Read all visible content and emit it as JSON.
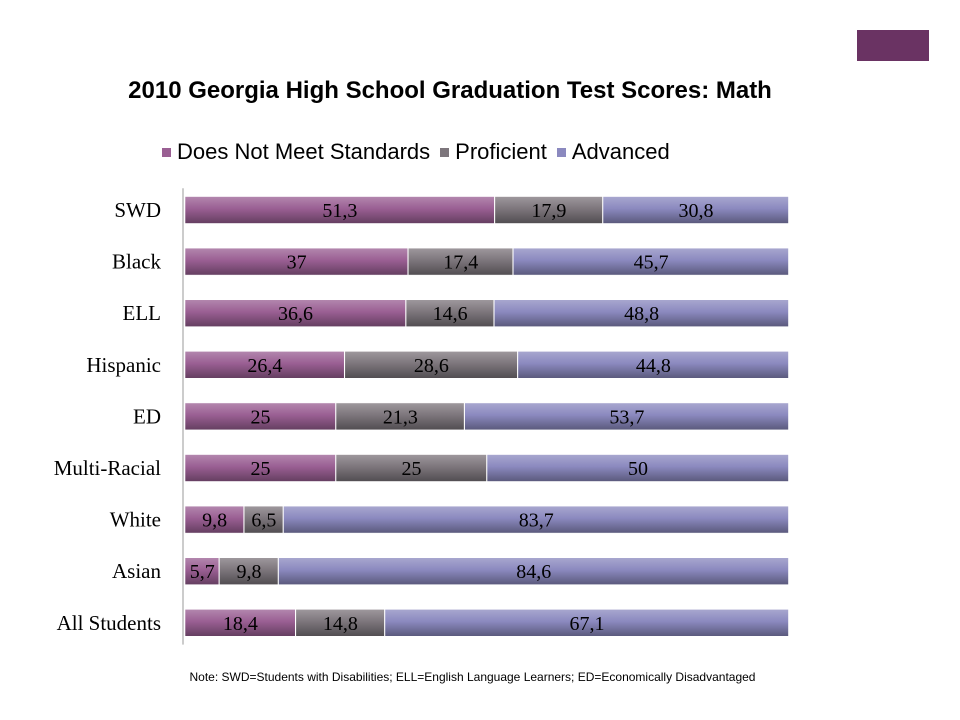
{
  "slide": {
    "accent_color": "#6a3363",
    "note": "Note: SWD=Students with Disabilities; ELL=English Language Learners; ED=Economically Disadvantaged"
  },
  "chart_data": {
    "type": "bar",
    "orientation": "horizontal",
    "stacked": "100%",
    "title": "2010 Georgia High School Graduation Test Scores: Math",
    "legend_position": "top",
    "grid": false,
    "categories": [
      "SWD",
      "Black",
      "ELL",
      "Hispanic",
      "ED",
      "Multi-Racial",
      "White",
      "Asian",
      "All Students"
    ],
    "series": [
      {
        "name": "Does Not Meet Standards",
        "color": "#9a5f93",
        "values": [
          51.3,
          37,
          36.6,
          26.4,
          25,
          25,
          9.8,
          5.7,
          18.4
        ],
        "labels": [
          "51,3",
          "37",
          "36,6",
          "26,4",
          "25",
          "25",
          "9,8",
          "5,7",
          "18,4"
        ]
      },
      {
        "name": "Proficient",
        "color": "#7d767c",
        "values": [
          17.9,
          17.4,
          14.6,
          28.6,
          21.3,
          25,
          6.5,
          9.8,
          14.8
        ],
        "labels": [
          "17,9",
          "17,4",
          "14,6",
          "28,6",
          "21,3",
          "25",
          "6,5",
          "9,8",
          "14,8"
        ]
      },
      {
        "name": "Advanced",
        "color": "#8b89bf",
        "values": [
          30.8,
          45.7,
          48.8,
          44.8,
          53.7,
          50,
          83.7,
          84.6,
          67.1
        ],
        "labels": [
          "30,8",
          "45,7",
          "48,8",
          "44,8",
          "53,7",
          "50",
          "83,7",
          "84,6",
          "67,1"
        ]
      }
    ]
  }
}
